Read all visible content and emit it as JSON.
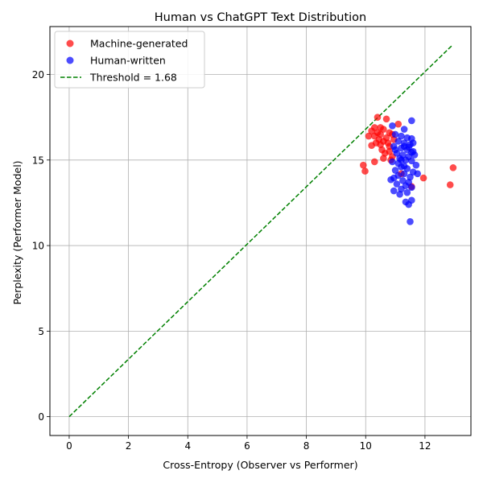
{
  "chart_data": {
    "type": "scatter",
    "title": "Human vs ChatGPT Text Distribution",
    "xlabel": "Cross-Entropy (Observer vs Performer)",
    "ylabel": "Perplexity (Performer Model)",
    "xlim": [
      -0.65,
      13.55
    ],
    "ylim": [
      -1.1,
      22.8
    ],
    "xticks": [
      0,
      2,
      4,
      6,
      8,
      10,
      12
    ],
    "yticks": [
      0,
      5,
      10,
      15,
      20
    ],
    "grid": true,
    "legend_position": "top-left",
    "series": [
      {
        "name": "Machine-generated",
        "color": "#ff0000",
        "points": [
          [
            10.4,
            17.5
          ],
          [
            10.7,
            17.4
          ],
          [
            11.1,
            17.1
          ],
          [
            10.3,
            16.9
          ],
          [
            10.5,
            16.9
          ],
          [
            10.6,
            16.8
          ],
          [
            10.2,
            16.7
          ],
          [
            10.4,
            16.6
          ],
          [
            10.8,
            16.6
          ],
          [
            10.5,
            16.5
          ],
          [
            10.3,
            16.4
          ],
          [
            10.7,
            16.3
          ],
          [
            10.1,
            16.4
          ],
          [
            10.9,
            16.5
          ],
          [
            10.45,
            16.2
          ],
          [
            10.6,
            16.1
          ],
          [
            10.35,
            16.0
          ],
          [
            10.75,
            16.0
          ],
          [
            10.5,
            15.9
          ],
          [
            10.2,
            15.85
          ],
          [
            10.8,
            15.8
          ],
          [
            10.95,
            16.2
          ],
          [
            10.55,
            15.6
          ],
          [
            10.65,
            15.4
          ],
          [
            10.9,
            15.2
          ],
          [
            10.6,
            15.1
          ],
          [
            10.3,
            14.9
          ],
          [
            10.8,
            15.5
          ],
          [
            9.92,
            14.7
          ],
          [
            9.98,
            14.35
          ],
          [
            11.95,
            13.95
          ],
          [
            12.85,
            13.55
          ],
          [
            12.95,
            14.55
          ],
          [
            11.55,
            13.45
          ],
          [
            11.2,
            14.2
          ],
          [
            10.85,
            15.0
          ]
        ]
      },
      {
        "name": "Human-written",
        "color": "#0000ff",
        "points": [
          [
            11.55,
            17.3
          ],
          [
            10.9,
            17.0
          ],
          [
            11.3,
            16.8
          ],
          [
            11.0,
            16.5
          ],
          [
            11.2,
            16.4
          ],
          [
            11.4,
            16.3
          ],
          [
            11.55,
            16.25
          ],
          [
            11.1,
            16.1
          ],
          [
            11.3,
            16.0
          ],
          [
            11.5,
            15.9
          ],
          [
            10.95,
            15.8
          ],
          [
            11.2,
            15.7
          ],
          [
            11.4,
            15.6
          ],
          [
            11.6,
            15.5
          ],
          [
            11.05,
            15.4
          ],
          [
            11.25,
            15.3
          ],
          [
            11.45,
            15.2
          ],
          [
            11.65,
            15.3
          ],
          [
            11.15,
            15.1
          ],
          [
            11.35,
            15.0
          ],
          [
            11.55,
            14.95
          ],
          [
            10.9,
            14.9
          ],
          [
            11.7,
            14.7
          ],
          [
            11.2,
            14.6
          ],
          [
            11.4,
            14.5
          ],
          [
            11.0,
            14.4
          ],
          [
            11.6,
            14.3
          ],
          [
            11.3,
            14.2
          ],
          [
            11.1,
            14.1
          ],
          [
            11.5,
            14.0
          ],
          [
            11.75,
            14.2
          ],
          [
            10.95,
            13.95
          ],
          [
            11.25,
            13.8
          ],
          [
            11.45,
            13.7
          ],
          [
            10.85,
            13.85
          ],
          [
            11.05,
            13.6
          ],
          [
            11.35,
            13.5
          ],
          [
            11.55,
            13.4
          ],
          [
            11.2,
            13.3
          ],
          [
            10.95,
            13.2
          ],
          [
            11.4,
            13.1
          ],
          [
            11.15,
            13.0
          ],
          [
            11.55,
            12.65
          ],
          [
            11.35,
            12.55
          ],
          [
            11.45,
            12.4
          ],
          [
            11.5,
            11.4
          ],
          [
            11.3,
            15.8
          ],
          [
            11.0,
            15.6
          ],
          [
            11.6,
            16.0
          ],
          [
            11.2,
            15.0
          ],
          [
            11.45,
            15.75
          ],
          [
            11.1,
            14.8
          ],
          [
            11.3,
            14.65
          ],
          [
            11.55,
            15.45
          ]
        ]
      }
    ],
    "threshold_line": {
      "name": "Threshold = 1.68",
      "color": "#008000",
      "style": "dashed",
      "slope": 1.68,
      "x_range": [
        0,
        12.9
      ]
    }
  }
}
